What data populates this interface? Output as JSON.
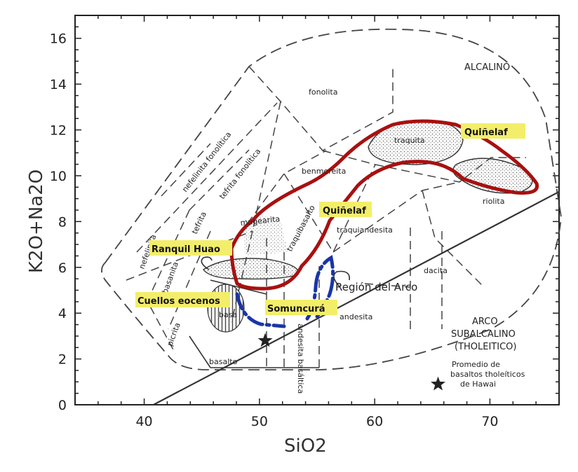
{
  "chart_data": {
    "type": "scatter",
    "xlabel": "SiO2",
    "ylabel": "K2O+Na2O",
    "xlim": [
      34,
      76
    ],
    "ylim": [
      0,
      17
    ],
    "xticks": [
      "40",
      "50",
      "60",
      "70"
    ],
    "yticks": [
      "0",
      "2",
      "4",
      "6",
      "8",
      "10",
      "12",
      "14",
      "16"
    ],
    "grid": false,
    "series_labels": {
      "alcalino": "ALCALINO",
      "arco1": "ARCO",
      "arco2": "SUBALCALINO",
      "arco3": "(THOLEITICO)",
      "region_arco": "Región del Arco",
      "promedio1": "Promedio de",
      "promedio2": "basaltos tholeíticos",
      "promedio3": "de Hawai"
    },
    "field_labels": {
      "fonolita": "fonolita",
      "nefelinita_fonolitica": "nefelinita fonolítica",
      "tefrita_fonolitica": "tefrita fonolítica",
      "benmoreita": "benmoreita",
      "traquita": "traquita",
      "riolita": "riolita",
      "mugearita": "mugearita",
      "traquibasalto": "traquibasalto",
      "traquiandesita": "traquiandesita",
      "dacita": "dacita",
      "andesita": "andesita",
      "andesita_basaltica": "andesita basáltica",
      "basalto": "basalto",
      "basanita": "basanita",
      "tefrita": "tefrita",
      "nefelinita": "nefelinita",
      "picrita": "picrita",
      "basa": "basa"
    },
    "highlight_labels": {
      "quinelaf_top": "Quiñelaf",
      "quinelaf_mid": "Quiñelaf",
      "ranquil_huao": "Ranquil Huao",
      "cuellos_eocenos": "Cuellos eocenos",
      "somuncura": "Somuncurá"
    },
    "points": [
      {
        "name": "star-arco",
        "x": 50.5,
        "y": 2.8
      },
      {
        "name": "star-hawai",
        "x": 65.5,
        "y": 0.9
      }
    ],
    "divider_line": {
      "x": [
        40.8,
        76
      ],
      "y": [
        0,
        9.3
      ]
    },
    "colors": {
      "red_outline": "#a81010",
      "blue_outline": "#1a35a8",
      "highlight": "#f3ee6a"
    }
  }
}
